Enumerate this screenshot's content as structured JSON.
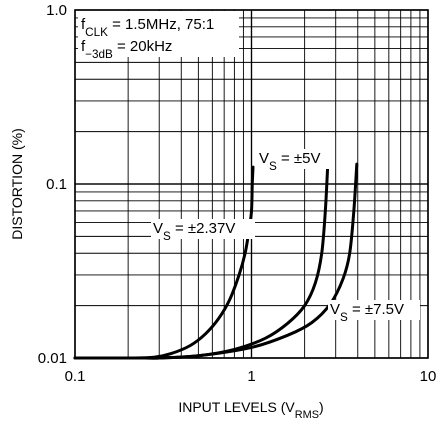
{
  "chart_data": {
    "type": "line",
    "xlabel": "INPUT LEVELS (V",
    "xlabel_sub": "RMS",
    "xlabel_end": ")",
    "ylabel": "DISTORTION (%)",
    "xscale": "log",
    "yscale": "log",
    "xlim": [
      0.1,
      10
    ],
    "ylim": [
      0.01,
      1.0
    ],
    "x_ticks": [
      {
        "value": 0.1,
        "label": "0.1"
      },
      {
        "value": 1,
        "label": "1"
      },
      {
        "value": 10,
        "label": "10"
      }
    ],
    "y_ticks": [
      {
        "value": 0.01,
        "label": "0.01"
      },
      {
        "value": 0.1,
        "label": "0.1"
      },
      {
        "value": 1.0,
        "label": "1.0"
      }
    ],
    "grid": true,
    "annotations": {
      "fclk": {
        "main": "f",
        "sub": "CLK",
        "rest": " = 1.5MHz, 75:1"
      },
      "f3db": {
        "main": "f",
        "sub": "−3dB",
        "rest": " = 20kHz"
      }
    },
    "series": [
      {
        "name": "V_S = ±2.37V",
        "label_main": "V",
        "label_sub": "S",
        "label_rest": " = ±2.37V",
        "x": [
          0.1,
          0.2,
          0.28,
          0.35,
          0.45,
          0.55,
          0.65,
          0.75,
          0.85,
          0.92,
          0.97,
          1.0,
          1.01,
          1.02
        ],
        "y": [
          0.01,
          0.01,
          0.0101,
          0.0106,
          0.0118,
          0.0138,
          0.0168,
          0.0215,
          0.03,
          0.04,
          0.055,
          0.07,
          0.1,
          0.125
        ]
      },
      {
        "name": "V_S = ±5V",
        "label_main": "V",
        "label_sub": "S",
        "label_rest": " = ±5V",
        "x": [
          0.1,
          0.25,
          0.3,
          0.5,
          0.8,
          1.2,
          1.6,
          2.0,
          2.3,
          2.5,
          2.62,
          2.7
        ],
        "y": [
          0.01,
          0.01,
          0.01,
          0.0103,
          0.0112,
          0.013,
          0.0158,
          0.02,
          0.027,
          0.04,
          0.07,
          0.125
        ]
      },
      {
        "name": "V_S = ±7.5V",
        "label_main": "V",
        "label_sub": "S",
        "label_rest": " = ±7.5V",
        "x": [
          0.1,
          0.25,
          0.3,
          0.5,
          1.0,
          1.6,
          2.2,
          2.8,
          3.3,
          3.6,
          3.8,
          3.95
        ],
        "y": [
          0.01,
          0.01,
          0.01,
          0.0103,
          0.0115,
          0.0135,
          0.016,
          0.0205,
          0.0285,
          0.04,
          0.07,
          0.13
        ]
      }
    ]
  }
}
